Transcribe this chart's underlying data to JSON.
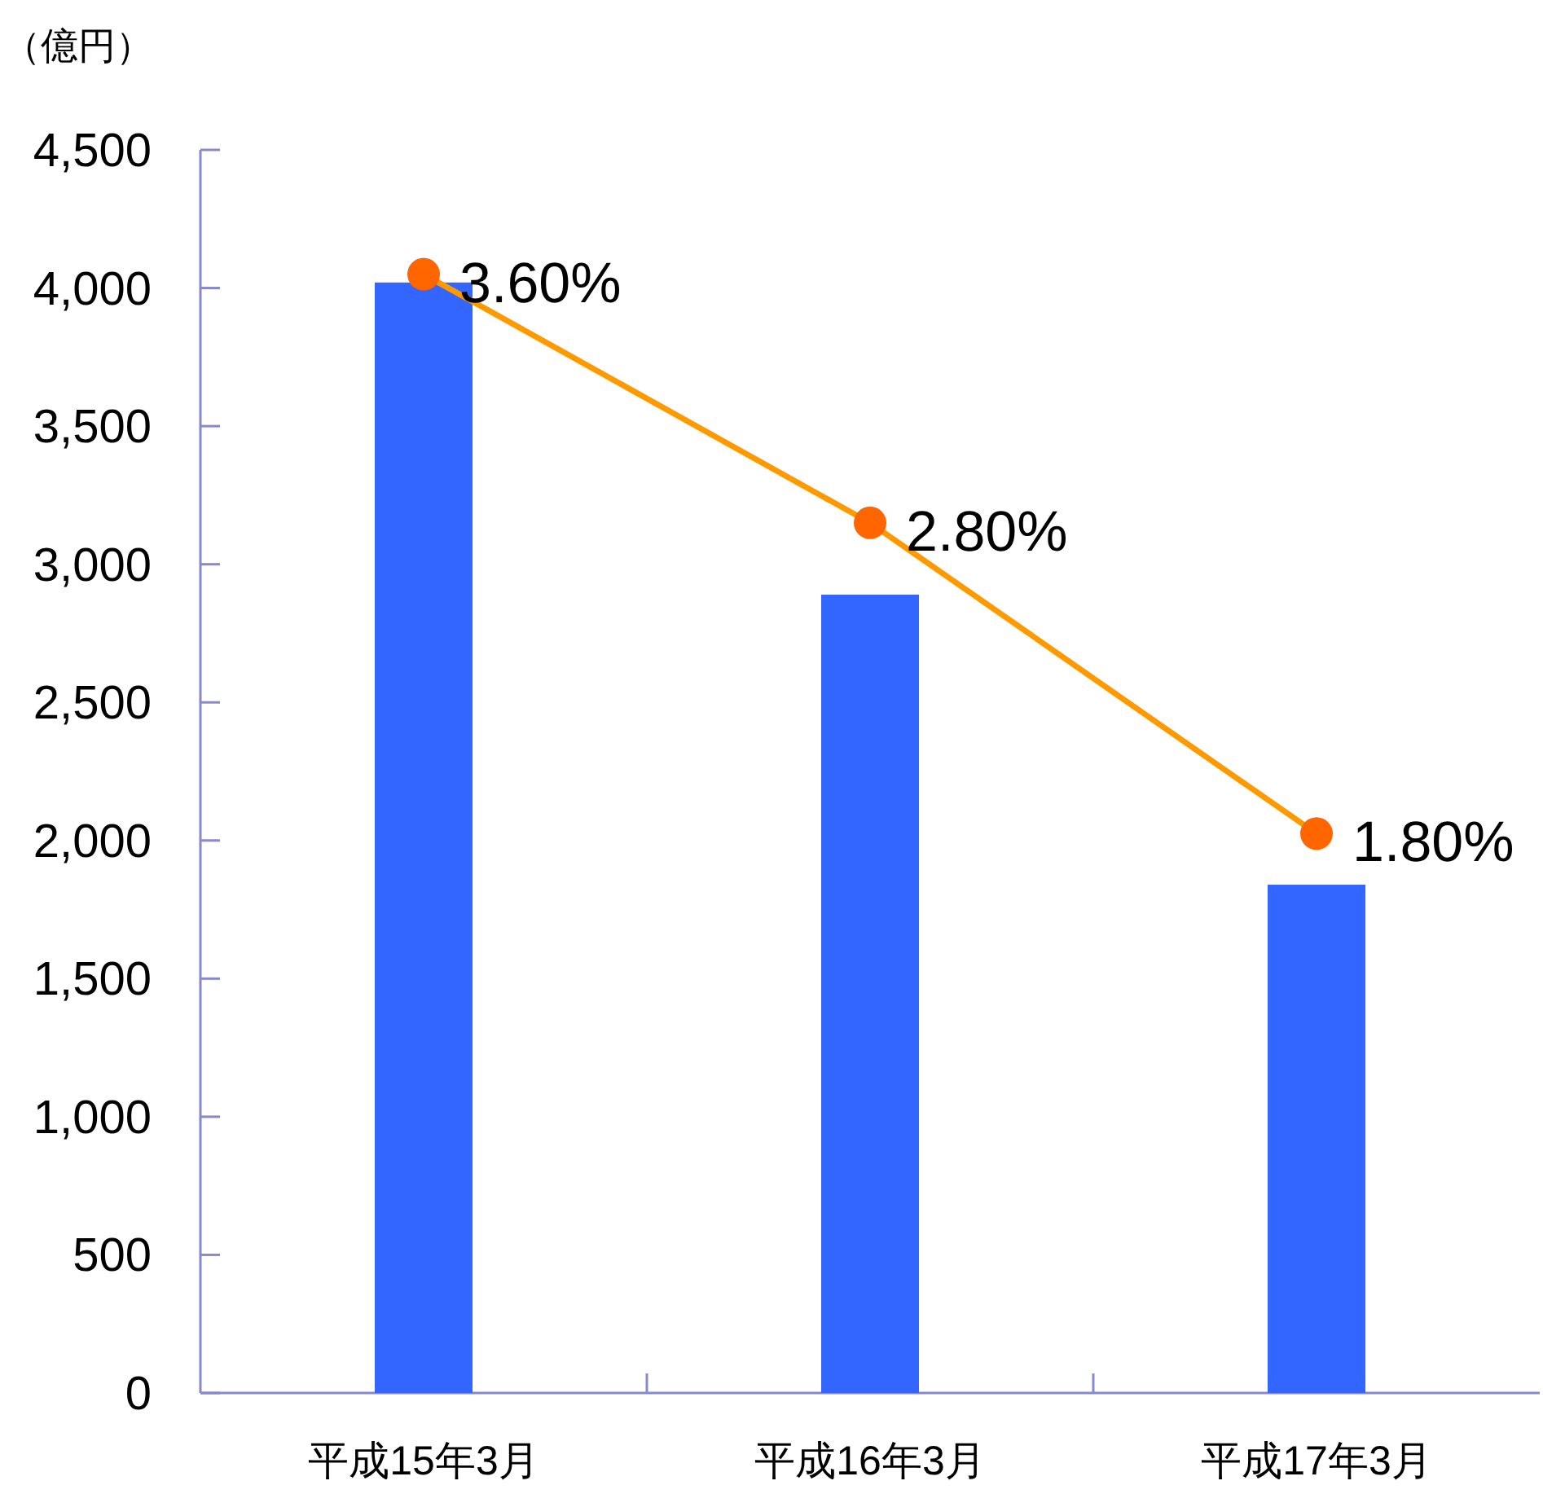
{
  "chart_data": {
    "type": "bar",
    "ylabel": "（億円）",
    "categories": [
      "平成15年3月",
      "平成16年3月",
      "平成17年3月"
    ],
    "series": [
      {
        "color": "#3366ff",
        "values": [
          4020,
          2890,
          1840
        ]
      },
      {
        "type": "line",
        "axis": "y2",
        "color": "#ff9900",
        "colors": [
          "#ff6600",
          "#ff6600",
          "#ff6600"
        ],
        "values": [
          3.6,
          2.8,
          1.8
        ],
        "value_labels": [
          "3.60%",
          "2.80%",
          "1.80%"
        ]
      }
    ],
    "ylim": [
      0,
      4500
    ],
    "yticks": [
      {
        "value": 0,
        "label": "0"
      },
      {
        "value": 500,
        "label": "500"
      },
      {
        "value": 1000,
        "label": "1,000"
      },
      {
        "value": 1500,
        "label": "1,500"
      },
      {
        "value": 2000,
        "label": "2,000"
      },
      {
        "value": 2500,
        "label": "2,500"
      },
      {
        "value": 3000,
        "label": "3,000"
      },
      {
        "value": 3500,
        "label": "3,500"
      },
      {
        "value": 4000,
        "label": "4,000"
      },
      {
        "value": 4500,
        "label": "4,500"
      }
    ],
    "y2lim": [
      0,
      4
    ],
    "marker": "circle",
    "grid": false
  }
}
